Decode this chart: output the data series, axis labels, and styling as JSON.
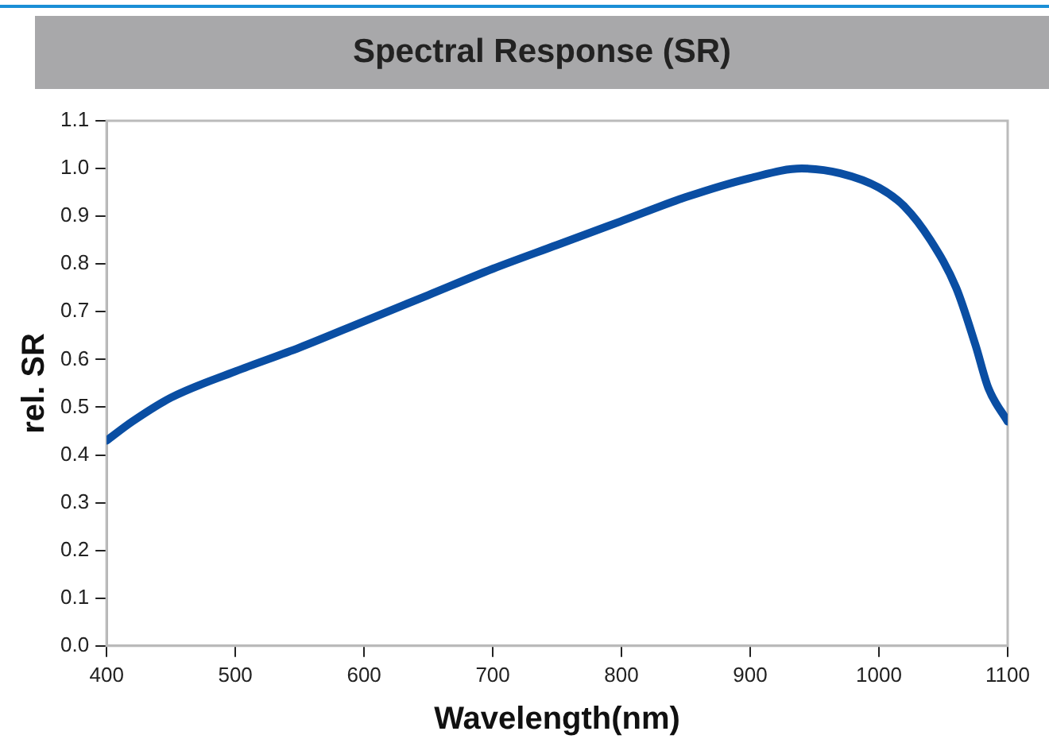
{
  "chart_data": {
    "type": "line",
    "title": "Spectral Response (SR)",
    "xlabel": "Wavelength(nm)",
    "ylabel": "rel. SR",
    "x": [
      400,
      420,
      450,
      500,
      550,
      600,
      650,
      700,
      750,
      800,
      850,
      900,
      940,
      970,
      1000,
      1020,
      1040,
      1060,
      1075,
      1085,
      1100
    ],
    "series": [
      {
        "color": "#0a4ea3",
        "values": [
          0.43,
          0.47,
          0.52,
          0.575,
          0.625,
          0.68,
          0.735,
          0.79,
          0.84,
          0.89,
          0.94,
          0.98,
          1.0,
          0.99,
          0.96,
          0.92,
          0.85,
          0.75,
          0.63,
          0.54,
          0.47
        ]
      }
    ],
    "xlim": [
      400,
      1100
    ],
    "xticks": [
      400,
      500,
      600,
      700,
      800,
      900,
      1000,
      1100
    ],
    "ylim": [
      0,
      1.1
    ],
    "yticks": [
      {
        "value": 0,
        "label": "0.0"
      },
      {
        "value": 0.1,
        "label": "0.1"
      },
      {
        "value": 0.2,
        "label": "0.2"
      },
      {
        "value": 0.3,
        "label": "0.3"
      },
      {
        "value": 0.4,
        "label": "0.4"
      },
      {
        "value": 0.5,
        "label": "0.5"
      },
      {
        "value": 0.6,
        "label": "0.6"
      },
      {
        "value": 0.7,
        "label": "0.7"
      },
      {
        "value": 0.8,
        "label": "0.8"
      },
      {
        "value": 0.9,
        "label": "0.9"
      },
      {
        "value": 1,
        "label": "1.0"
      },
      {
        "value": 1.1,
        "label": "1.1"
      }
    ],
    "grid": false,
    "legend": false,
    "marker": "none",
    "line_style": "solid"
  }
}
